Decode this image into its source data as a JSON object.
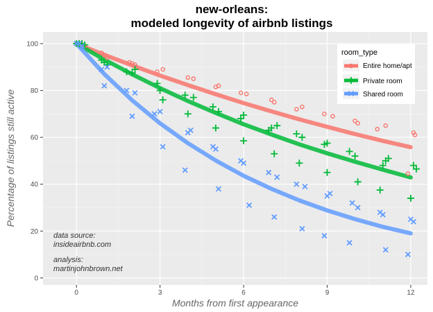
{
  "chart_data": {
    "type": "scatter",
    "title": [
      "new-orleans:",
      "modeled longevity of airbnb listings"
    ],
    "xlabel": "Months from first appearance",
    "ylabel": "Percentage of listings still active",
    "xlim": [
      -1.2,
      12.6
    ],
    "ylim": [
      -3,
      105
    ],
    "x_ticks": [
      0,
      3,
      6,
      9,
      12
    ],
    "y_ticks": [
      0,
      20,
      40,
      60,
      80,
      100
    ],
    "grid": true,
    "legend": {
      "title": "room_type",
      "position": "top-right"
    },
    "series": [
      {
        "name": "Entire home/apt",
        "color": "#F8766D",
        "marker": "circle",
        "points": [
          [
            0,
            100
          ],
          [
            0.1,
            100
          ],
          [
            0.2,
            99.5
          ],
          [
            0.3,
            99
          ],
          [
            0.9,
            96
          ],
          [
            1.0,
            95
          ],
          [
            1.1,
            94
          ],
          [
            1.9,
            92
          ],
          [
            2.0,
            91.5
          ],
          [
            2.1,
            91
          ],
          [
            2.9,
            88
          ],
          [
            3.1,
            89
          ],
          [
            4.0,
            85.5
          ],
          [
            4.2,
            85
          ],
          [
            5.0,
            81.5
          ],
          [
            5.1,
            82
          ],
          [
            5.9,
            79
          ],
          [
            6.1,
            78.5
          ],
          [
            7.0,
            76
          ],
          [
            7.1,
            75
          ],
          [
            7.9,
            72
          ],
          [
            8.1,
            73
          ],
          [
            8.9,
            70
          ],
          [
            9.2,
            69
          ],
          [
            10.0,
            67
          ],
          [
            10.1,
            66
          ],
          [
            10.8,
            63.5
          ],
          [
            11.1,
            65
          ],
          [
            11.9,
            44.5
          ],
          [
            12.1,
            62
          ],
          [
            12.15,
            61
          ]
        ],
        "curve": [
          [
            0,
            100
          ],
          [
            1,
            95.2
          ],
          [
            2,
            90.7
          ],
          [
            3,
            86.4
          ],
          [
            4,
            82.3
          ],
          [
            5,
            78.4
          ],
          [
            6,
            74.6
          ],
          [
            7,
            71.1
          ],
          [
            8,
            67.7
          ],
          [
            9,
            64.5
          ],
          [
            10,
            61.4
          ],
          [
            11,
            58.5
          ],
          [
            12,
            55.8
          ]
        ]
      },
      {
        "name": "Private room",
        "color": "#00BA38",
        "marker": "plus",
        "points": [
          [
            0,
            100
          ],
          [
            0.1,
            100
          ],
          [
            0.2,
            100
          ],
          [
            0.3,
            99.5
          ],
          [
            0.9,
            93
          ],
          [
            1.0,
            92
          ],
          [
            1.1,
            91
          ],
          [
            1.8,
            88
          ],
          [
            2.0,
            87.5
          ],
          [
            2.1,
            89
          ],
          [
            2.9,
            83
          ],
          [
            3.0,
            80
          ],
          [
            3.1,
            76
          ],
          [
            3.9,
            78
          ],
          [
            4.0,
            70
          ],
          [
            4.2,
            77
          ],
          [
            4.9,
            73
          ],
          [
            5.0,
            64
          ],
          [
            5.1,
            71
          ],
          [
            5.9,
            68
          ],
          [
            6.0,
            69.5
          ],
          [
            6.0,
            58.5
          ],
          [
            6.9,
            63
          ],
          [
            7.0,
            64
          ],
          [
            7.1,
            53
          ],
          [
            7.2,
            65
          ],
          [
            7.9,
            61.5
          ],
          [
            8.0,
            49
          ],
          [
            8.1,
            60
          ],
          [
            8.9,
            57
          ],
          [
            9.0,
            57.5
          ],
          [
            9.0,
            45
          ],
          [
            9.8,
            54
          ],
          [
            10.0,
            52
          ],
          [
            10.1,
            41
          ],
          [
            10.9,
            37.5
          ],
          [
            11.0,
            48
          ],
          [
            11.1,
            50
          ],
          [
            11.2,
            51
          ],
          [
            12.0,
            34
          ],
          [
            12.1,
            48
          ],
          [
            12.2,
            46.5
          ]
        ],
        "curve": [
          [
            0,
            100
          ],
          [
            1,
            93.2
          ],
          [
            2,
            86.9
          ],
          [
            3,
            81.0
          ],
          [
            4,
            75.5
          ],
          [
            5,
            70.4
          ],
          [
            6,
            65.6
          ],
          [
            7,
            61.2
          ],
          [
            8,
            57.0
          ],
          [
            9,
            53.2
          ],
          [
            10,
            49.6
          ],
          [
            11,
            46.2
          ],
          [
            12,
            42.9
          ]
        ]
      },
      {
        "name": "Shared room",
        "color": "#619CFF",
        "marker": "x",
        "points": [
          [
            0,
            100
          ],
          [
            0.1,
            100
          ],
          [
            0.2,
            99
          ],
          [
            0.9,
            89
          ],
          [
            1.0,
            82
          ],
          [
            1.1,
            90
          ],
          [
            1.8,
            80
          ],
          [
            2.0,
            69
          ],
          [
            2.1,
            79
          ],
          [
            2.8,
            70
          ],
          [
            3.0,
            71
          ],
          [
            3.1,
            56
          ],
          [
            3.9,
            46
          ],
          [
            4.0,
            62
          ],
          [
            4.1,
            63
          ],
          [
            4.9,
            56
          ],
          [
            5.0,
            55
          ],
          [
            5.1,
            38
          ],
          [
            5.9,
            50
          ],
          [
            6.0,
            49
          ],
          [
            6.2,
            31
          ],
          [
            6.9,
            45
          ],
          [
            7.1,
            26
          ],
          [
            7.2,
            43
          ],
          [
            7.9,
            40
          ],
          [
            8.1,
            21
          ],
          [
            8.2,
            39
          ],
          [
            8.9,
            18
          ],
          [
            9.0,
            35
          ],
          [
            9.1,
            36
          ],
          [
            9.8,
            15
          ],
          [
            9.9,
            32
          ],
          [
            10.1,
            30
          ],
          [
            10.9,
            28
          ],
          [
            11.0,
            27
          ],
          [
            11.1,
            12
          ],
          [
            11.9,
            10
          ],
          [
            12.0,
            25
          ],
          [
            12.1,
            24
          ]
        ],
        "curve": [
          [
            0,
            100
          ],
          [
            1,
            87.0
          ],
          [
            2,
            75.8
          ],
          [
            3,
            66.0
          ],
          [
            4,
            57.5
          ],
          [
            5,
            50.1
          ],
          [
            6,
            43.6
          ],
          [
            7,
            38.0
          ],
          [
            8,
            33.1
          ],
          [
            9,
            28.8
          ],
          [
            10,
            25.1
          ],
          [
            11,
            21.8
          ],
          [
            12,
            19.0
          ]
        ]
      }
    ],
    "annotations": [
      {
        "lines": [
          "data source:",
          "insideairbnb.com"
        ]
      },
      {
        "lines": [
          "analysis:",
          "martinjohnbrown.net"
        ]
      }
    ]
  }
}
